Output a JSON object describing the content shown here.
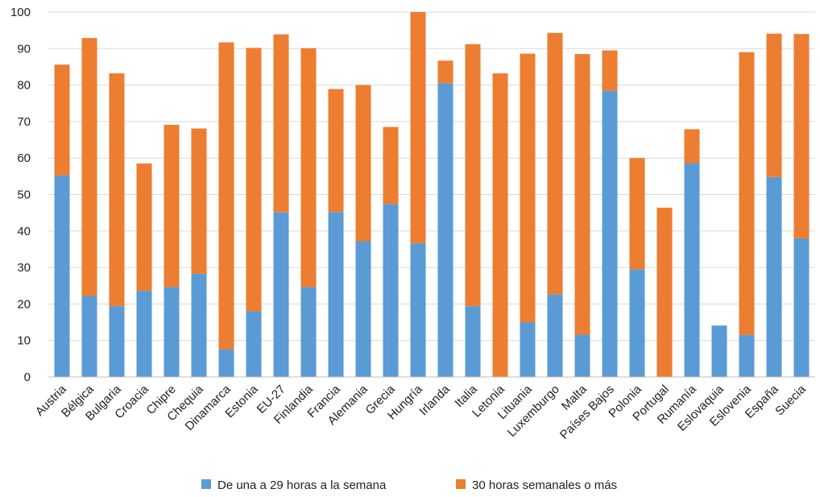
{
  "chart_data": {
    "type": "bar",
    "stacked": true,
    "categories": [
      "Austria",
      "Bélgica",
      "Bulgaria",
      "Croacia",
      "Chipre",
      "Chequia",
      "Dinamarca",
      "Estonia",
      "EU-27",
      "Finlandia",
      "Francia",
      "Alemania",
      "Grecia",
      "Hungría",
      "Irlanda",
      "Italia",
      "Letonia",
      "Lituania",
      "Luxemburgo",
      "Malta",
      "Países Bajos",
      "Polonia",
      "Portugal",
      "Rumanía",
      "Eslovaquia",
      "Eslovenia",
      "España",
      "Suecia"
    ],
    "series": [
      {
        "name": "De una a 29 horas a la semana",
        "color": "#5b9bd5",
        "values": [
          55.2,
          22.2,
          19.4,
          23.6,
          24.6,
          28.3,
          7.6,
          18.0,
          45.1,
          24.6,
          45.2,
          37.2,
          47.4,
          36.6,
          80.5,
          19.4,
          0,
          15.0,
          22.6,
          11.6,
          78.4,
          29.5,
          0,
          58.6,
          14.1,
          11.5,
          54.8,
          38.0
        ]
      },
      {
        "name": "30 horas semanales o más",
        "color": "#ed7d31",
        "values": [
          30.4,
          70.7,
          63.8,
          34.9,
          44.5,
          39.8,
          84.1,
          72.2,
          48.8,
          65.5,
          33.7,
          42.8,
          21.1,
          63.4,
          6.2,
          71.8,
          83.2,
          73.6,
          71.7,
          76.9,
          11.1,
          30.5,
          46.4,
          9.3,
          0,
          77.5,
          39.3,
          56.0
        ]
      }
    ],
    "yticks": [
      "0",
      "10",
      "20",
      "30",
      "40",
      "50",
      "60",
      "70",
      "80",
      "90",
      "100"
    ],
    "ylim": [
      0,
      100
    ],
    "grid": true,
    "legend_position": "bottom"
  }
}
